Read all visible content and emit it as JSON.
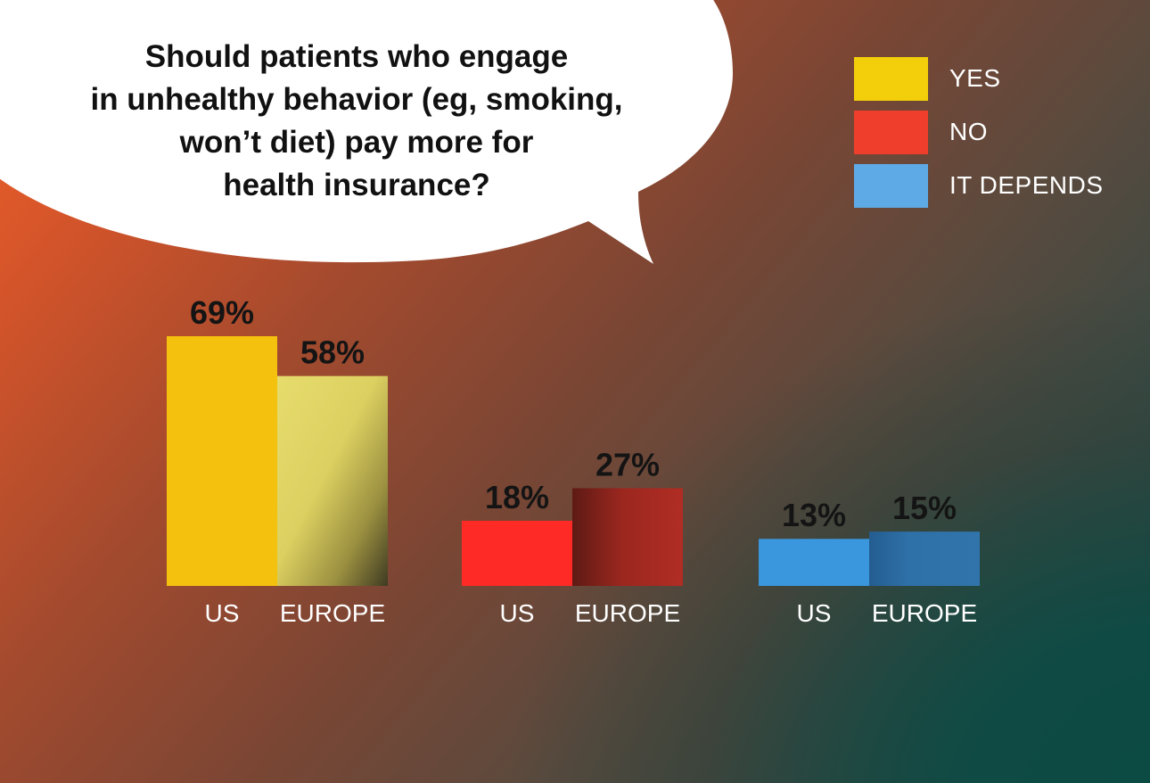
{
  "question": "Should patients who engage\nin unhealthy behavior (eg, smoking,\nwon’t diet) pay more for\nhealth insurance?",
  "legend": [
    {
      "label": "YES",
      "color": "#f2cf0a"
    },
    {
      "label": "NO",
      "color": "#ef3e2b"
    },
    {
      "label": "IT DEPENDS",
      "color": "#5eaae6"
    }
  ],
  "chart_data": {
    "type": "bar",
    "title": "Should patients who engage in unhealthy behavior (eg, smoking, won’t diet) pay more for health insurance?",
    "categories": [
      "YES",
      "NO",
      "IT DEPENDS"
    ],
    "series": [
      {
        "name": "US",
        "values": [
          69,
          18,
          13
        ],
        "labels": [
          "69%",
          "18%",
          "13%"
        ]
      },
      {
        "name": "EUROPE",
        "values": [
          58,
          27,
          15
        ],
        "labels": [
          "58%",
          "27%",
          "15%"
        ]
      }
    ],
    "colors": {
      "US": [
        "#f5c10f",
        "#fd2a25",
        "#3a97dd"
      ],
      "EUROPE": [
        "#e5da6a",
        "#a92b22",
        "#2e6fa6"
      ]
    },
    "grid": false,
    "legend_position": "top-right"
  }
}
